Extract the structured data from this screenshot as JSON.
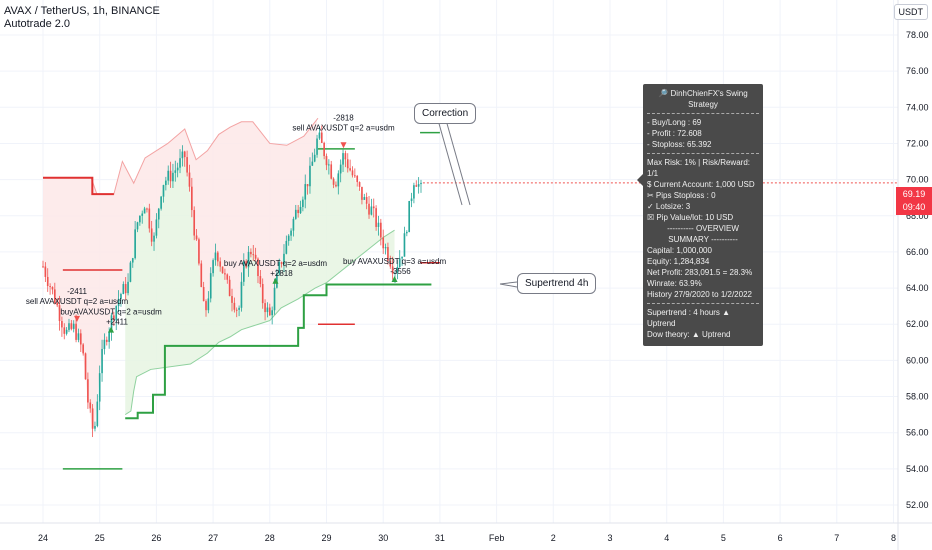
{
  "header": {
    "symbol_line": "AVAX / TetherUS, 1h, BINANCE",
    "indicator": "Autotrade 2.0"
  },
  "currency_badge": "USDT",
  "last_price": {
    "value": "69.19",
    "countdown": "09:40",
    "color": "#f23645"
  },
  "colors": {
    "bull": "#26a69a",
    "bear": "#ef5350",
    "supertrend_up": "#2ea043",
    "supertrend_down": "#e03131",
    "up_fill": "#e6f4e2",
    "down_fill": "#fde8e8"
  },
  "strategy_panel": {
    "title": "🔎 DinhChienFX's Swing Strategy",
    "trade_lines": [
      "- Buy/Long   : 69",
      "- Profit   : 72.608",
      "- Stoploss: 65.392"
    ],
    "risk_lines": [
      "Max Risk: 1% | Risk/Reward: 1/1",
      "$ Current Account: 1,000 USD",
      "✂ Pips Stoploss : 0",
      "✓ Lotsize: 3",
      "☒ Pip Value/lot: 10 USD"
    ],
    "overview_title": "---------- OVERVIEW SUMMARY ----------",
    "overview_lines": [
      "Capital: 1,000,000",
      "Equity: 1,284,834",
      "Net Profit: 283,091.5 = 28.3%",
      "Winrate: 63.9%",
      "History 27/9/2020 to 1/2/2022"
    ],
    "trend_lines": [
      "Supertrend : 4 hours ▲ Uptrend",
      "Dow theory:   ▲ Uptrend"
    ]
  },
  "callouts": {
    "correction": "Correction",
    "supertrend": "Supertrend 4h"
  },
  "chart_data": {
    "type": "candlestick",
    "xlabel": "",
    "ylabel": "",
    "ylim": [
      50.5,
      79.5
    ],
    "x_ticks": [
      "24",
      "25",
      "26",
      "27",
      "28",
      "29",
      "30",
      "31",
      "Feb",
      "2",
      "3",
      "4",
      "5",
      "6",
      "7",
      "8"
    ],
    "y_ticks": [
      "52.00",
      "54.00",
      "56.00",
      "58.00",
      "60.00",
      "62.00",
      "64.00",
      "66.00",
      "68.00",
      "70.00",
      "72.00",
      "74.00",
      "76.00",
      "78.00"
    ],
    "y_tick_values": [
      52,
      54,
      56,
      58,
      60,
      62,
      64,
      66,
      68,
      70,
      72,
      74,
      76,
      78
    ],
    "day_index": [
      0,
      1,
      2,
      3,
      4,
      5,
      6,
      7,
      8,
      9,
      10,
      11,
      12,
      13,
      14,
      15
    ],
    "close_anchors": [
      [
        0,
        65.2
      ],
      [
        0.2,
        63.5
      ],
      [
        0.4,
        61.5
      ],
      [
        0.55,
        61.8
      ],
      [
        0.7,
        60.5
      ],
      [
        0.8,
        57.5
      ],
      [
        0.9,
        55.8
      ],
      [
        1.0,
        59.5
      ],
      [
        1.1,
        61.2
      ],
      [
        1.2,
        62.2
      ],
      [
        1.35,
        63.6
      ],
      [
        1.5,
        64.2
      ],
      [
        1.65,
        67.5
      ],
      [
        1.8,
        68.8
      ],
      [
        1.95,
        66.5
      ],
      [
        2.1,
        69.8
      ],
      [
        2.3,
        70.4
      ],
      [
        2.5,
        71.3
      ],
      [
        2.6,
        69.0
      ],
      [
        2.75,
        65.2
      ],
      [
        2.85,
        62.4
      ],
      [
        3.05,
        66.2
      ],
      [
        3.25,
        64.1
      ],
      [
        3.45,
        62.7
      ],
      [
        3.55,
        65.3
      ],
      [
        3.7,
        66.3
      ],
      [
        3.85,
        63.5
      ],
      [
        4.0,
        62.4
      ],
      [
        4.15,
        64.9
      ],
      [
        4.3,
        66.6
      ],
      [
        4.5,
        68.6
      ],
      [
        4.7,
        70.2
      ],
      [
        4.85,
        72.4
      ],
      [
        5.0,
        71.2
      ],
      [
        5.15,
        69.8
      ],
      [
        5.3,
        71.4
      ],
      [
        5.45,
        70.3
      ],
      [
        5.65,
        68.9
      ],
      [
        5.8,
        68.3
      ],
      [
        6.0,
        66.5
      ],
      [
        6.2,
        65.0
      ],
      [
        6.35,
        66.2
      ],
      [
        6.55,
        70.2
      ],
      [
        6.7,
        69.19
      ]
    ],
    "supertrend_up": [
      [
        1.45,
        57.0
      ],
      [
        1.55,
        57.2
      ],
      [
        1.6,
        58.3
      ],
      [
        1.65,
        59.1
      ],
      [
        1.9,
        59.5
      ],
      [
        2.6,
        59.8
      ],
      [
        2.9,
        60.4
      ],
      [
        3.1,
        61.0
      ],
      [
        3.3,
        61.3
      ],
      [
        3.5,
        61.7
      ],
      [
        3.8,
        62.0
      ],
      [
        4.0,
        62.2
      ],
      [
        4.2,
        62.9
      ],
      [
        4.5,
        63.4
      ],
      [
        4.6,
        63.6
      ],
      [
        4.8,
        64.0
      ],
      [
        5.0,
        64.3
      ],
      [
        5.2,
        64.8
      ],
      [
        5.4,
        65.3
      ],
      [
        5.6,
        65.8
      ],
      [
        5.8,
        66.3
      ],
      [
        6.0,
        66.8
      ],
      [
        6.2,
        67.2
      ]
    ],
    "supertrend_down": [
      [
        0,
        70.1
      ],
      [
        0.85,
        70.1
      ],
      [
        0.95,
        69.2
      ],
      [
        1.25,
        69.2
      ],
      [
        1.4,
        71.0
      ],
      [
        1.6,
        69.8
      ],
      [
        1.8,
        71.2
      ],
      [
        2.2,
        72.0
      ],
      [
        2.5,
        72.8
      ],
      [
        2.7,
        71.1
      ],
      [
        2.9,
        71.6
      ],
      [
        3.1,
        72.5
      ],
      [
        3.3,
        72.9
      ],
      [
        3.5,
        73.2
      ],
      [
        3.7,
        73.2
      ],
      [
        4.0,
        72.0
      ],
      [
        4.3,
        71.9
      ],
      [
        4.6,
        72.4
      ],
      [
        4.85,
        73.4
      ]
    ],
    "supertrend_4h_up": [
      [
        1.45,
        56.8
      ],
      [
        1.67,
        56.8
      ],
      [
        1.67,
        57.1
      ],
      [
        1.94,
        57.1
      ],
      [
        1.94,
        58.1
      ],
      [
        2.15,
        58.1
      ],
      [
        2.15,
        60.8
      ],
      [
        4.5,
        60.8
      ],
      [
        4.5,
        61.8
      ],
      [
        4.6,
        61.8
      ],
      [
        4.6,
        63.6
      ],
      [
        5.0,
        63.6
      ],
      [
        5.0,
        64.2
      ],
      [
        6.85,
        64.2
      ]
    ],
    "supertrend_4h_down": [
      [
        0,
        70.1
      ],
      [
        0.87,
        70.1
      ],
      [
        0.87,
        69.2
      ],
      [
        1.25,
        69.2
      ]
    ],
    "signals": [
      {
        "label": "sell AVAXUSDT q=2 a=usdm",
        "sub": "-2411",
        "x": 0.6,
        "price": 61.8,
        "side": "sell"
      },
      {
        "label": "buyAVAXUSDT q=2 a=usdm",
        "sub": "+2411",
        "x": 1.2,
        "price": 62.2,
        "side": "buy"
      },
      {
        "label": "buy AVAXUSDT q=2 a=usdm",
        "sub": "+2818",
        "x": 4.1,
        "price": 64.9,
        "side": "buy"
      },
      {
        "label": "sell AVAXUSDT q=2 a=usdm",
        "sub": "-2818",
        "x": 5.3,
        "price": 71.4,
        "side": "sell"
      },
      {
        "label": "buy AVAXUSDT q=3 a=usdm",
        "sub": "-3556",
        "x": 6.2,
        "price": 65.0,
        "side": "buy"
      }
    ],
    "levels": [
      {
        "x1": 0.35,
        "x2": 1.4,
        "price": 54.0,
        "color": "#2ea043"
      },
      {
        "x1": 0.35,
        "x2": 1.4,
        "price": 65.0,
        "color": "#e03131"
      },
      {
        "x1": 4.85,
        "x2": 5.5,
        "price": 71.7,
        "color": "#2ea043"
      },
      {
        "x1": 4.85,
        "x2": 5.5,
        "price": 62.0,
        "color": "#e03131"
      },
      {
        "x1": 6.65,
        "x2": 7.0,
        "price": 72.6,
        "color": "#2ea043"
      },
      {
        "x1": 6.65,
        "x2": 7.0,
        "price": 65.4,
        "color": "#e03131"
      }
    ]
  }
}
